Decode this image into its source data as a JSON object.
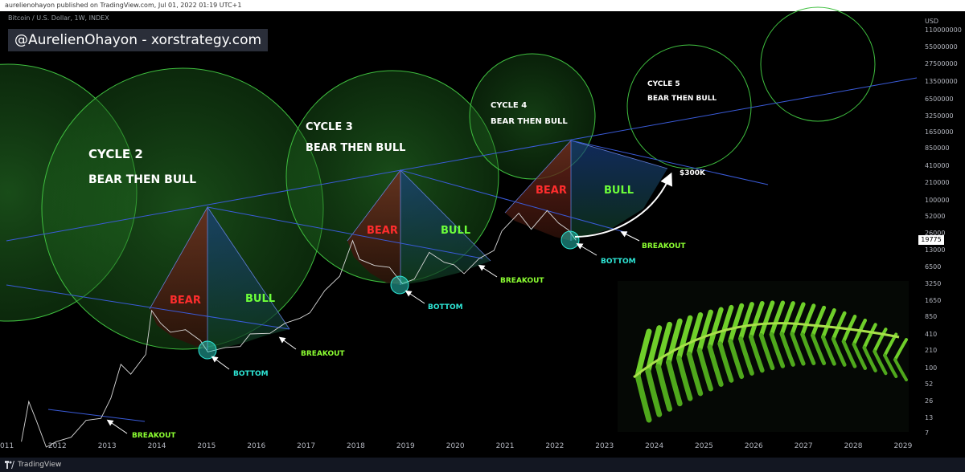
{
  "header": {
    "published": "aurelienohayon published on TradingView.com, Jul 01, 2022 01:19 UTC+1"
  },
  "symbol": "Bitcoin / U.S. Dollar, 1W, INDEX",
  "watermark": "@AurelienOhayon - xorstrategy.com",
  "footer": {
    "brand": "TradingView"
  },
  "chart_data": {
    "type": "line",
    "scale": "log",
    "currency": "USD",
    "last_price": "19775",
    "price_ticks": [
      "110000000",
      "55000000",
      "27500000",
      "13500000",
      "6500000",
      "3250000",
      "1650000",
      "850000",
      "410000",
      "210000",
      "100000",
      "52000",
      "26000",
      "13000",
      "6500",
      "3250",
      "1650",
      "850",
      "410",
      "210",
      "100",
      "52",
      "26",
      "13",
      "7"
    ],
    "time_ticks": [
      "011",
      "2012",
      "2013",
      "2014",
      "2015",
      "2016",
      "2017",
      "2018",
      "2019",
      "2020",
      "2021",
      "2022",
      "2023",
      "2024",
      "2025",
      "2026",
      "2027",
      "2028",
      "2029"
    ],
    "xlim": [
      2011.0,
      2029.3
    ],
    "ylim_log": [
      7,
      110000000
    ],
    "series": [
      {
        "values": [
          [
            2011.3,
            5
          ],
          [
            2011.45,
            26
          ],
          [
            2011.6,
            12
          ],
          [
            2011.8,
            4
          ],
          [
            2012.0,
            5
          ],
          [
            2012.3,
            6
          ],
          [
            2012.6,
            12
          ],
          [
            2012.9,
            13
          ],
          [
            2013.1,
            30
          ],
          [
            2013.3,
            120
          ],
          [
            2013.5,
            80
          ],
          [
            2013.8,
            180
          ],
          [
            2013.92,
            1100
          ],
          [
            2014.1,
            650
          ],
          [
            2014.3,
            450
          ],
          [
            2014.6,
            500
          ],
          [
            2014.9,
            320
          ],
          [
            2015.05,
            200
          ],
          [
            2015.4,
            240
          ],
          [
            2015.7,
            250
          ],
          [
            2015.9,
            420
          ],
          [
            2016.3,
            430
          ],
          [
            2016.6,
            650
          ],
          [
            2016.9,
            800
          ],
          [
            2017.1,
            1000
          ],
          [
            2017.4,
            2500
          ],
          [
            2017.7,
            4500
          ],
          [
            2017.96,
            19500
          ],
          [
            2018.1,
            9000
          ],
          [
            2018.4,
            7000
          ],
          [
            2018.7,
            6500
          ],
          [
            2018.96,
            3300
          ],
          [
            2019.2,
            4000
          ],
          [
            2019.5,
            12000
          ],
          [
            2019.8,
            8000
          ],
          [
            2020.0,
            7200
          ],
          [
            2020.2,
            5000
          ],
          [
            2020.5,
            9300
          ],
          [
            2020.8,
            13000
          ],
          [
            2020.96,
            29000
          ],
          [
            2021.3,
            60000
          ],
          [
            2021.55,
            31000
          ],
          [
            2021.87,
            67000
          ],
          [
            2022.1,
            40000
          ],
          [
            2022.3,
            30000
          ],
          [
            2022.45,
            19775
          ]
        ]
      }
    ],
    "annotations": [
      {
        "text": "CYCLE 2",
        "color": "#ffffff"
      },
      {
        "text": "BEAR THEN BULL",
        "color": "#ffffff"
      },
      {
        "text": "CYCLE 3",
        "color": "#ffffff"
      },
      {
        "text": "BEAR THEN BULL",
        "color": "#ffffff"
      },
      {
        "text": "CYCLE 4",
        "color": "#ffffff"
      },
      {
        "text": "BEAR THEN BULL",
        "color": "#ffffff"
      },
      {
        "text": "CYCLE 5",
        "color": "#ffffff"
      },
      {
        "text": "BEAR THEN BULL",
        "color": "#ffffff"
      },
      {
        "text": "BEAR",
        "color": "#ff2d2d"
      },
      {
        "text": "BULL",
        "color": "#6dff3a"
      },
      {
        "text": "BEAR",
        "color": "#ff2d2d"
      },
      {
        "text": "BULL",
        "color": "#6dff3a"
      },
      {
        "text": "BEAR",
        "color": "#ff2d2d"
      },
      {
        "text": "BULL",
        "color": "#6dff3a"
      },
      {
        "text": "BOTTOM",
        "color": "#2ee6d6"
      },
      {
        "text": "BOTTOM",
        "color": "#2ee6d6"
      },
      {
        "text": "BOTTOM",
        "color": "#2ee6d6"
      },
      {
        "text": "BREAKOUT",
        "color": "#8cff32"
      },
      {
        "text": "BREAKOUT",
        "color": "#8cff32"
      },
      {
        "text": "BREAKOUT",
        "color": "#8cff32"
      },
      {
        "text": "BREAKOUT",
        "color": "#8cff32"
      },
      {
        "text": "$300K",
        "color": "#ffffff"
      }
    ],
    "colors": {
      "circle_stroke": "#3fbf3f",
      "circle_fill": "#1f7a1f",
      "trendline": "#3a5bd9",
      "bear": "#ff2d2d",
      "bull": "#6dff3a",
      "bottom": "#2ee6d6",
      "breakout": "#8cff32"
    }
  }
}
